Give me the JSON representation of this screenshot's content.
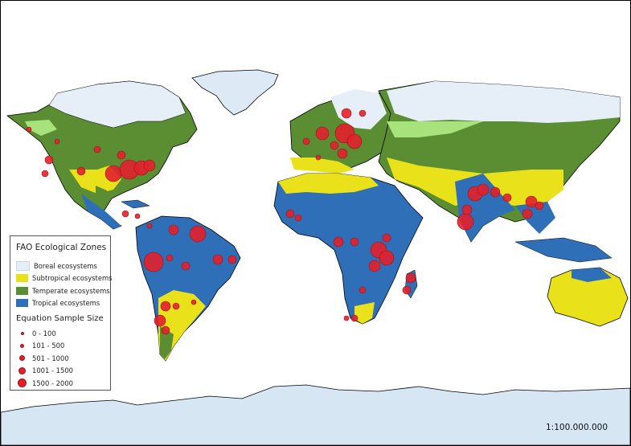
{
  "legend": {
    "zones_title": "FAO Ecological Zones",
    "zones": [
      {
        "label": "Boreal ecosystems",
        "color": "#e6eff8"
      },
      {
        "label": "Subtropical ecosystems",
        "color": "#e9e21a"
      },
      {
        "label": "Temperate ecosystems",
        "color": "#5b8d33"
      },
      {
        "label": "Tropical ecosystems",
        "color": "#2f6fb7"
      }
    ],
    "sample_title": "Equation Sample Size",
    "sample_classes": [
      "0 - 100",
      "101 - 500",
      "501 - 1000",
      "1001 - 1500",
      "1500 - 2000"
    ],
    "marker_color": "#e3202b"
  },
  "scale_text": "1:100.000.000",
  "colors": {
    "ocean": "#ffffff",
    "land_outline": "#000000",
    "ice": "#d7e6f3",
    "steppe": "#a7e27c"
  }
}
